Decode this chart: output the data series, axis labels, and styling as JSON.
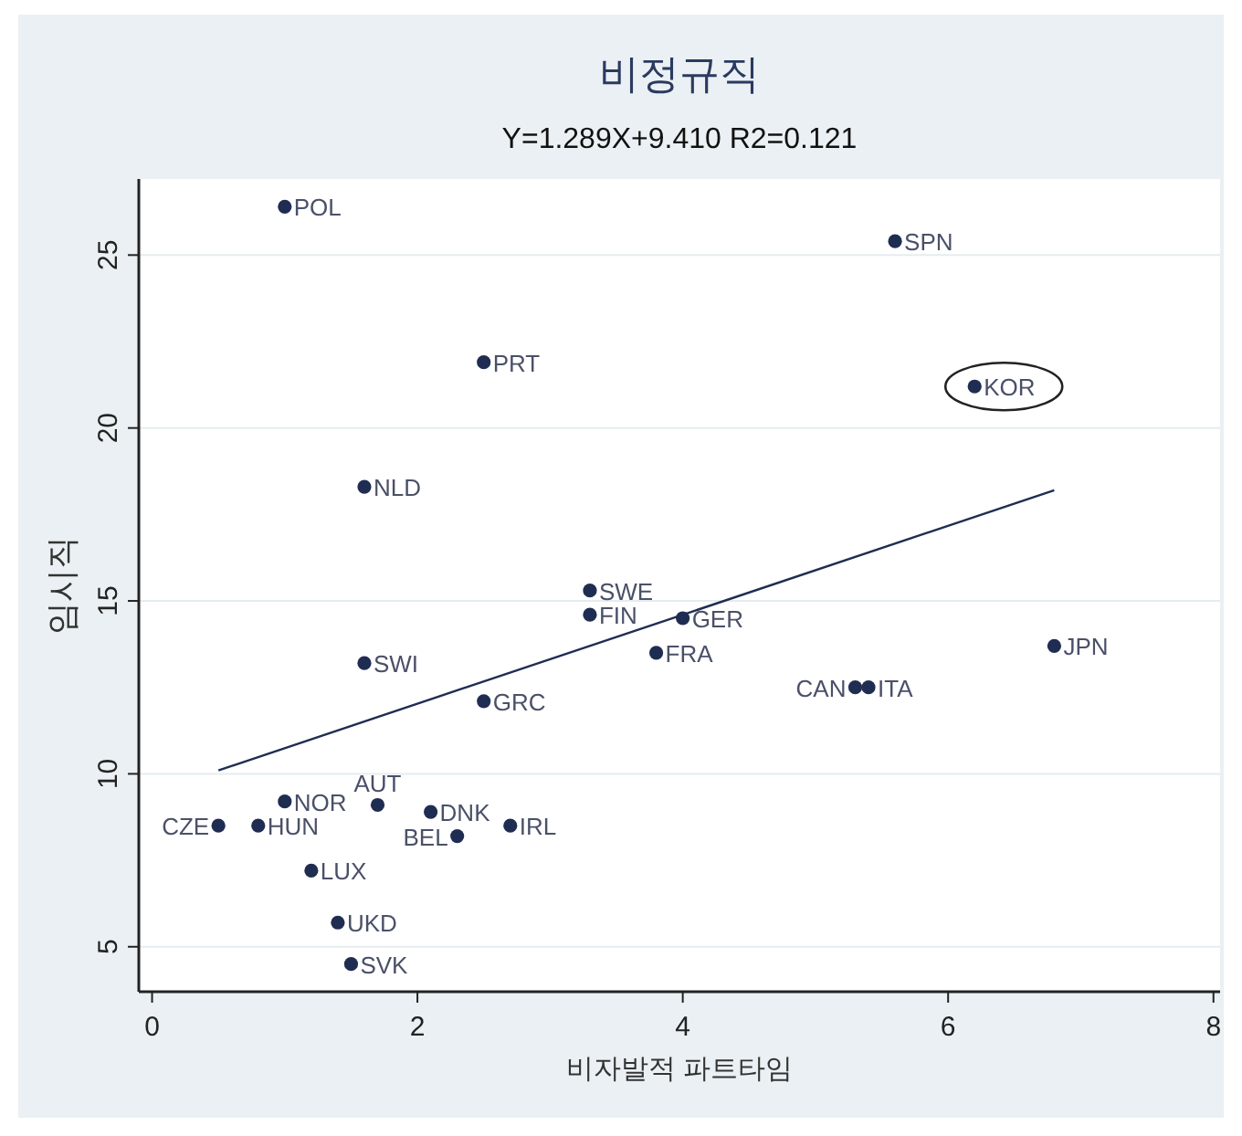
{
  "chart_data": {
    "type": "scatter",
    "title": "비정규직",
    "subtitle": "Y=1.289X+9.410 R2=0.121",
    "xlabel": "비자발적 파트타임",
    "ylabel": "임시직",
    "xlim": [
      -0.1,
      8.05
    ],
    "ylim": [
      3.7,
      27.2
    ],
    "xticks": [
      0,
      2,
      4,
      6,
      8
    ],
    "yticks": [
      5,
      10,
      15,
      20,
      25
    ],
    "grid": "y",
    "marker": "circle",
    "series": [
      {
        "color": "#1f2d52",
        "x": [
          1.0,
          2.5,
          1.6,
          5.6,
          3.3,
          3.3,
          4.0,
          3.8,
          1.6,
          2.5,
          6.8,
          5.3,
          5.4,
          1.0,
          1.7,
          2.1,
          0.5,
          0.8,
          2.3,
          2.7,
          1.2,
          1.4,
          1.5
        ],
        "values": [
          26.4,
          21.9,
          18.3,
          25.4,
          15.3,
          14.6,
          14.5,
          13.5,
          13.2,
          12.1,
          13.7,
          12.5,
          12.5,
          9.2,
          9.1,
          8.9,
          8.5,
          8.5,
          8.2,
          8.5,
          7.2,
          5.7,
          4.5
        ]
      },
      {
        "type": "scatter",
        "color": "#1f2d52",
        "x": [
          6.2
        ],
        "values": [
          21.2
        ]
      },
      {
        "type": "line",
        "marker": "none",
        "color": "#1f2d52",
        "x": [
          0.5,
          6.8
        ],
        "values": [
          10.1,
          18.2
        ]
      }
    ],
    "annotations": [
      {
        "text": "POL",
        "x": 1.0,
        "y": 26.4
      },
      {
        "text": "PRT",
        "x": 2.5,
        "y": 21.9
      },
      {
        "text": "NLD",
        "x": 1.6,
        "y": 18.3
      },
      {
        "text": "SPN",
        "x": 5.6,
        "y": 25.4
      },
      {
        "text": "KOR",
        "x": 6.2,
        "y": 21.2
      },
      {
        "text": "SWE",
        "x": 3.3,
        "y": 15.3
      },
      {
        "text": "FIN",
        "x": 3.3,
        "y": 14.6
      },
      {
        "text": "GER",
        "x": 4.0,
        "y": 14.5
      },
      {
        "text": "FRA",
        "x": 3.8,
        "y": 13.5
      },
      {
        "text": "SWI",
        "x": 1.6,
        "y": 13.2
      },
      {
        "text": "GRC",
        "x": 2.5,
        "y": 12.1
      },
      {
        "text": "JPN",
        "x": 6.8,
        "y": 13.7
      },
      {
        "text": "CAN",
        "x": 5.3,
        "y": 12.5
      },
      {
        "text": "ITA",
        "x": 5.4,
        "y": 12.5
      },
      {
        "text": "NOR",
        "x": 1.0,
        "y": 9.2
      },
      {
        "text": "AUT",
        "x": 1.7,
        "y": 9.1
      },
      {
        "text": "DNK",
        "x": 2.1,
        "y": 8.9
      },
      {
        "text": "CZE",
        "x": 0.5,
        "y": 8.5
      },
      {
        "text": "HUN",
        "x": 0.8,
        "y": 8.5
      },
      {
        "text": "BEL",
        "x": 2.3,
        "y": 8.2
      },
      {
        "text": "IRL",
        "x": 2.7,
        "y": 8.5
      },
      {
        "text": "LUX",
        "x": 1.2,
        "y": 7.2
      },
      {
        "text": "UKD",
        "x": 1.4,
        "y": 5.7
      },
      {
        "text": "SVK",
        "x": 1.5,
        "y": 4.5
      }
    ]
  }
}
